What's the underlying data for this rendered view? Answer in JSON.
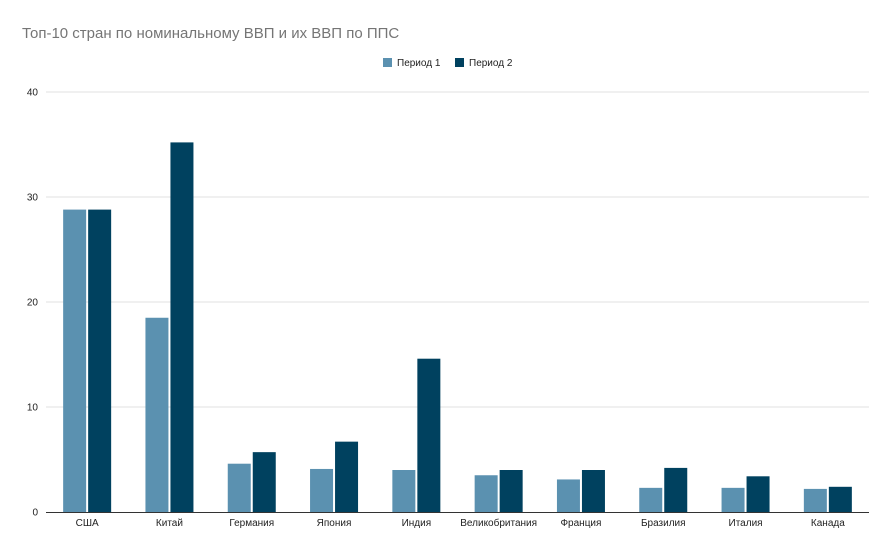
{
  "chart_data": {
    "type": "bar",
    "title": "Топ-10 стран по номинальному ВВП и их ВВП по ППС",
    "xlabel": "",
    "ylabel": "",
    "categories": [
      "США",
      "Китай",
      "Германия",
      "Япония",
      "Индия",
      "Великобритания",
      "Франция",
      "Бразилия",
      "Италия",
      "Канада"
    ],
    "series": [
      {
        "name": "Период 1",
        "color": "#5b91b0",
        "values": [
          28.8,
          18.5,
          4.6,
          4.1,
          4.0,
          3.5,
          3.1,
          2.3,
          2.3,
          2.2
        ]
      },
      {
        "name": "Период 2",
        "color": "#00415f",
        "values": [
          28.8,
          35.2,
          5.7,
          6.7,
          14.6,
          4.0,
          4.0,
          4.2,
          3.4,
          2.4
        ]
      }
    ],
    "ylim": [
      0,
      40
    ],
    "yticks": [
      0,
      10,
      20,
      30,
      40
    ],
    "grid": true,
    "legend_position": "top-center"
  }
}
